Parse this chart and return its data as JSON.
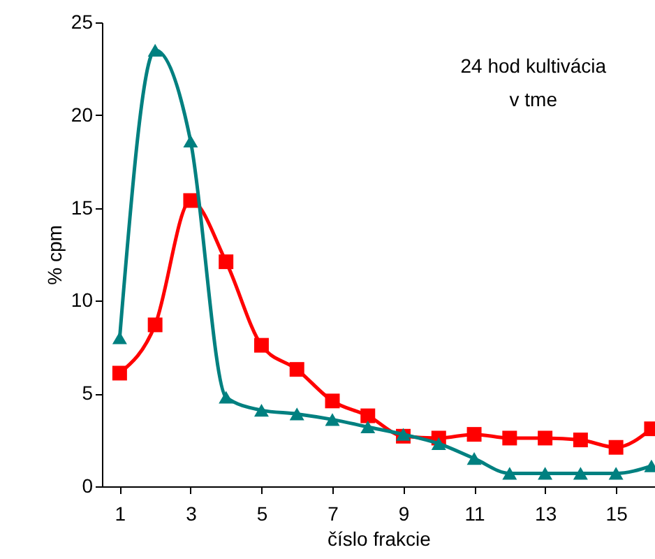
{
  "chart_data": {
    "type": "line",
    "xlabel": "číslo frakcie",
    "ylabel": "% cpm",
    "annotations": [
      "24 hod kultivácia\nv tme"
    ],
    "x": [
      1,
      2,
      3,
      4,
      5,
      6,
      7,
      8,
      9,
      10,
      11,
      12,
      13,
      14,
      15,
      16
    ],
    "series": [
      {
        "color": "#ff0000",
        "marker": "square",
        "values": [
          6.1,
          8.7,
          15.4,
          12.1,
          7.6,
          6.3,
          4.6,
          3.8,
          2.7,
          2.6,
          2.8,
          2.6,
          2.6,
          2.5,
          2.1,
          3.1
        ]
      },
      {
        "color": "#008080",
        "marker": "triangle",
        "values": [
          8.0,
          23.5,
          18.6,
          4.8,
          4.1,
          3.9,
          3.6,
          3.2,
          2.8,
          2.3,
          1.5,
          0.7,
          0.7,
          0.7,
          0.7,
          1.1
        ]
      }
    ],
    "xlim": [
      0.5,
      16.1
    ],
    "xticks": [
      1,
      3,
      5,
      7,
      9,
      11,
      13,
      15
    ],
    "ylim": [
      0,
      25
    ],
    "yticks": [
      0,
      5,
      10,
      15,
      20,
      25
    ],
    "grid": false,
    "line_style": "solid"
  }
}
